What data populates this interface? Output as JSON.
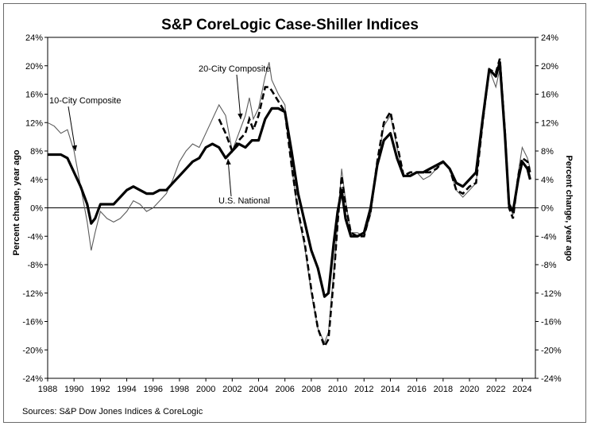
{
  "chart_data": {
    "type": "line",
    "title": "S&P CoreLogic Case-Shiller Indices",
    "ylabel_left": "Percent change, year ago",
    "ylabel_right": "Percent change, year ago",
    "source": "Sources: S&P Dow Jones Indices & CoreLogic",
    "xlim": [
      1988,
      2025
    ],
    "ylim": [
      -24,
      24
    ],
    "x_ticks": [
      "1988",
      "1990",
      "1992",
      "1994",
      "1996",
      "1998",
      "2000",
      "2002",
      "2004",
      "2006",
      "2008",
      "2010",
      "2012",
      "2014",
      "2016",
      "2018",
      "2020",
      "2022",
      "2024"
    ],
    "y_ticks": [
      "24%",
      "20%",
      "16%",
      "12%",
      "8%",
      "4%",
      "0%",
      "-4%",
      "-8%",
      "-12%",
      "-16%",
      "-20%",
      "-24%"
    ],
    "annotations": [
      {
        "label": "10-City Composite",
        "series": "10-City Composite"
      },
      {
        "label": "20-City Composite",
        "series": "20-City Composite"
      },
      {
        "label": "U.S. National",
        "series": "U.S. National"
      }
    ],
    "series": [
      {
        "name": "10-City Composite",
        "style": "thin",
        "points": [
          [
            1988,
            12.0
          ],
          [
            1988.5,
            11.5
          ],
          [
            1989,
            10.5
          ],
          [
            1989.5,
            11.0
          ],
          [
            1990,
            8.0
          ],
          [
            1990.5,
            3.0
          ],
          [
            1991,
            -2.0
          ],
          [
            1991.3,
            -6.0
          ],
          [
            1991.6,
            -3.5
          ],
          [
            1992,
            -0.5
          ],
          [
            1992.5,
            -1.5
          ],
          [
            1993,
            -2.0
          ],
          [
            1993.5,
            -1.5
          ],
          [
            1994,
            -0.5
          ],
          [
            1994.5,
            1.0
          ],
          [
            1995,
            0.5
          ],
          [
            1995.5,
            -0.5
          ],
          [
            1996,
            0.0
          ],
          [
            1996.5,
            1.0
          ],
          [
            1997,
            2.0
          ],
          [
            1997.5,
            4.0
          ],
          [
            1998,
            6.5
          ],
          [
            1998.5,
            8.0
          ],
          [
            1999,
            9.0
          ],
          [
            1999.5,
            8.5
          ],
          [
            2000,
            10.5
          ],
          [
            2000.5,
            12.5
          ],
          [
            2001,
            14.5
          ],
          [
            2001.5,
            13.0
          ],
          [
            2002,
            8.0
          ],
          [
            2002.5,
            10.5
          ],
          [
            2003,
            13.0
          ],
          [
            2003.3,
            15.5
          ],
          [
            2003.6,
            12.5
          ],
          [
            2004,
            14.0
          ],
          [
            2004.5,
            18.5
          ],
          [
            2004.8,
            20.5
          ],
          [
            2005,
            18.0
          ],
          [
            2005.5,
            16.0
          ],
          [
            2006,
            14.5
          ],
          [
            2006.5,
            6.0
          ],
          [
            2007,
            -1.0
          ],
          [
            2007.5,
            -5.5
          ],
          [
            2008,
            -12.0
          ],
          [
            2008.5,
            -17.0
          ],
          [
            2009,
            -19.0
          ],
          [
            2009.3,
            -17.5
          ],
          [
            2009.7,
            -9.0
          ],
          [
            2010,
            -2.0
          ],
          [
            2010.3,
            5.5
          ],
          [
            2010.6,
            1.0
          ],
          [
            2011,
            -3.5
          ],
          [
            2011.5,
            -3.5
          ],
          [
            2012,
            -4.0
          ],
          [
            2012.5,
            -1.0
          ],
          [
            2013,
            6.0
          ],
          [
            2013.5,
            11.5
          ],
          [
            2014,
            13.0
          ],
          [
            2014.5,
            8.5
          ],
          [
            2015,
            4.5
          ],
          [
            2015.5,
            4.5
          ],
          [
            2016,
            5.0
          ],
          [
            2016.5,
            4.0
          ],
          [
            2017,
            4.5
          ],
          [
            2017.5,
            5.5
          ],
          [
            2018,
            6.5
          ],
          [
            2018.5,
            5.5
          ],
          [
            2019,
            2.5
          ],
          [
            2019.5,
            1.5
          ],
          [
            2020,
            2.5
          ],
          [
            2020.5,
            3.5
          ],
          [
            2021,
            11.5
          ],
          [
            2021.5,
            19.5
          ],
          [
            2022,
            17.0
          ],
          [
            2022.3,
            19.5
          ],
          [
            2022.7,
            10.0
          ],
          [
            2023,
            0.5
          ],
          [
            2023.3,
            -1.0
          ],
          [
            2023.7,
            5.0
          ],
          [
            2024,
            8.5
          ],
          [
            2024.4,
            7.0
          ],
          [
            2024.6,
            5.5
          ]
        ]
      },
      {
        "name": "20-City Composite",
        "style": "dashed",
        "points": [
          [
            2001,
            12.5
          ],
          [
            2001.5,
            10.5
          ],
          [
            2002,
            8.0
          ],
          [
            2002.5,
            9.5
          ],
          [
            2003,
            10.5
          ],
          [
            2003.3,
            12.5
          ],
          [
            2003.6,
            11.0
          ],
          [
            2004,
            13.0
          ],
          [
            2004.5,
            17.0
          ],
          [
            2004.8,
            17.0
          ],
          [
            2005,
            16.5
          ],
          [
            2005.5,
            15.0
          ],
          [
            2006,
            13.5
          ],
          [
            2006.5,
            6.0
          ],
          [
            2007,
            -0.5
          ],
          [
            2007.5,
            -5.0
          ],
          [
            2008,
            -11.5
          ],
          [
            2008.5,
            -17.0
          ],
          [
            2009,
            -19.5
          ],
          [
            2009.3,
            -18.5
          ],
          [
            2009.7,
            -10.0
          ],
          [
            2010,
            -2.0
          ],
          [
            2010.3,
            4.5
          ],
          [
            2010.6,
            0.5
          ],
          [
            2011,
            -3.5
          ],
          [
            2011.5,
            -4.0
          ],
          [
            2012,
            -4.0
          ],
          [
            2012.5,
            -0.5
          ],
          [
            2013,
            6.5
          ],
          [
            2013.5,
            12.0
          ],
          [
            2014,
            13.5
          ],
          [
            2014.5,
            9.0
          ],
          [
            2015,
            4.5
          ],
          [
            2015.5,
            5.0
          ],
          [
            2016,
            5.0
          ],
          [
            2016.5,
            5.0
          ],
          [
            2017,
            5.0
          ],
          [
            2017.5,
            5.5
          ],
          [
            2018,
            6.5
          ],
          [
            2018.5,
            5.5
          ],
          [
            2019,
            2.5
          ],
          [
            2019.5,
            2.0
          ],
          [
            2020,
            3.0
          ],
          [
            2020.5,
            3.5
          ],
          [
            2021,
            12.0
          ],
          [
            2021.5,
            19.5
          ],
          [
            2022,
            19.0
          ],
          [
            2022.3,
            21.0
          ],
          [
            2022.7,
            10.5
          ],
          [
            2023,
            0.0
          ],
          [
            2023.3,
            -1.5
          ],
          [
            2023.7,
            4.5
          ],
          [
            2024,
            7.0
          ],
          [
            2024.4,
            6.5
          ],
          [
            2024.6,
            5.0
          ]
        ]
      },
      {
        "name": "U.S. National",
        "style": "thick",
        "points": [
          [
            1988,
            7.5
          ],
          [
            1988.5,
            7.5
          ],
          [
            1989,
            7.5
          ],
          [
            1989.5,
            7.0
          ],
          [
            1990,
            5.0
          ],
          [
            1990.5,
            3.0
          ],
          [
            1991,
            0.5
          ],
          [
            1991.3,
            -2.2
          ],
          [
            1991.6,
            -1.5
          ],
          [
            1992,
            0.5
          ],
          [
            1992.5,
            0.5
          ],
          [
            1993,
            0.5
          ],
          [
            1993.5,
            1.5
          ],
          [
            1994,
            2.5
          ],
          [
            1994.5,
            3.0
          ],
          [
            1995,
            2.5
          ],
          [
            1995.5,
            2.0
          ],
          [
            1996,
            2.0
          ],
          [
            1996.5,
            2.5
          ],
          [
            1997,
            2.5
          ],
          [
            1997.5,
            3.5
          ],
          [
            1998,
            4.5
          ],
          [
            1998.5,
            5.5
          ],
          [
            1999,
            6.5
          ],
          [
            1999.5,
            7.0
          ],
          [
            2000,
            8.5
          ],
          [
            2000.5,
            9.0
          ],
          [
            2001,
            8.5
          ],
          [
            2001.5,
            7.0
          ],
          [
            2002,
            8.0
          ],
          [
            2002.5,
            9.0
          ],
          [
            2003,
            8.5
          ],
          [
            2003.5,
            9.5
          ],
          [
            2004,
            9.5
          ],
          [
            2004.5,
            12.5
          ],
          [
            2005,
            14.0
          ],
          [
            2005.5,
            14.0
          ],
          [
            2006,
            13.5
          ],
          [
            2006.5,
            8.0
          ],
          [
            2007,
            2.0
          ],
          [
            2007.5,
            -2.0
          ],
          [
            2008,
            -6.0
          ],
          [
            2008.5,
            -8.5
          ],
          [
            2009,
            -12.5
          ],
          [
            2009.3,
            -12.0
          ],
          [
            2009.7,
            -5.0
          ],
          [
            2010,
            -0.5
          ],
          [
            2010.3,
            2.5
          ],
          [
            2010.6,
            -1.5
          ],
          [
            2011,
            -4.0
          ],
          [
            2011.5,
            -4.0
          ],
          [
            2012,
            -3.5
          ],
          [
            2012.5,
            0.0
          ],
          [
            2013,
            6.0
          ],
          [
            2013.5,
            9.5
          ],
          [
            2014,
            10.5
          ],
          [
            2014.5,
            7.0
          ],
          [
            2015,
            4.5
          ],
          [
            2015.5,
            4.5
          ],
          [
            2016,
            5.0
          ],
          [
            2016.5,
            5.0
          ],
          [
            2017,
            5.5
          ],
          [
            2017.5,
            6.0
          ],
          [
            2018,
            6.5
          ],
          [
            2018.5,
            5.5
          ],
          [
            2019,
            3.5
          ],
          [
            2019.5,
            3.0
          ],
          [
            2020,
            4.0
          ],
          [
            2020.5,
            5.0
          ],
          [
            2021,
            12.5
          ],
          [
            2021.5,
            19.5
          ],
          [
            2022,
            18.5
          ],
          [
            2022.3,
            20.5
          ],
          [
            2022.7,
            10.0
          ],
          [
            2023,
            0.5
          ],
          [
            2023.3,
            -0.5
          ],
          [
            2023.7,
            4.0
          ],
          [
            2024,
            6.5
          ],
          [
            2024.4,
            5.5
          ],
          [
            2024.6,
            4.0
          ]
        ]
      }
    ]
  }
}
